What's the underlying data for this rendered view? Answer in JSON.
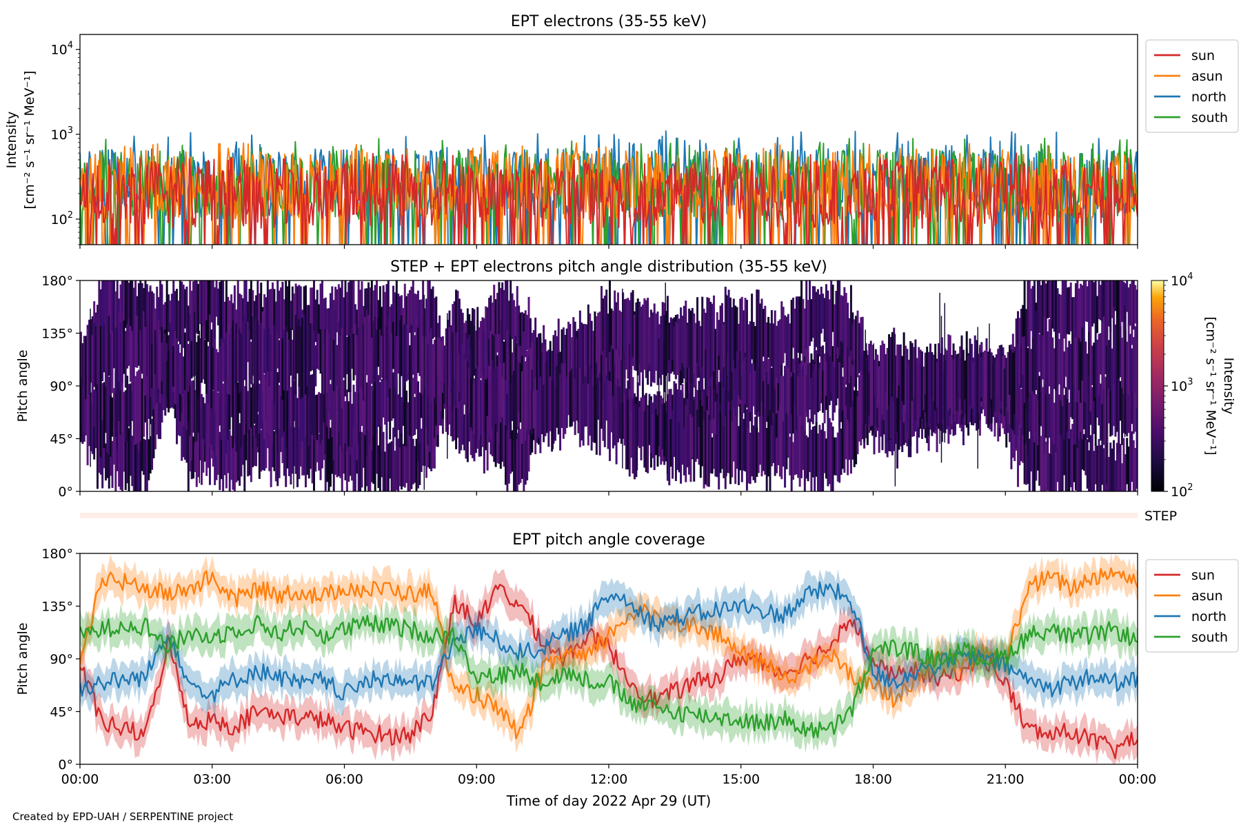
{
  "footer": "Created by EPD-UAH / SERPENTINE project",
  "colors": {
    "sun": "#d62728",
    "asun": "#ff7f0e",
    "north": "#1f77b4",
    "south": "#2ca02c",
    "step_band": "#fdeee8"
  },
  "shared_x": {
    "label": "Time of day 2022 Apr 29 (UT)",
    "range_hours": [
      0,
      24
    ],
    "ticks_hours": [
      0,
      3,
      6,
      9,
      12,
      15,
      18,
      21,
      24
    ],
    "tick_labels": [
      "00:00",
      "03:00",
      "06:00",
      "09:00",
      "12:00",
      "15:00",
      "18:00",
      "21:00",
      "00:00"
    ]
  },
  "chart_data": [
    {
      "type": "line",
      "title": "EPT electrons (35-55 keV)",
      "ylabel_line1": "Intensity",
      "ylabel_line2": "[cm⁻² s⁻¹ sr⁻¹ MeV⁻¹]",
      "yscale": "log",
      "ylim": [
        50,
        15000
      ],
      "yticks": [
        {
          "base": "10",
          "exp": "2"
        },
        {
          "base": "10",
          "exp": "3"
        },
        {
          "base": "10",
          "exp": "4"
        }
      ],
      "legend_placement": "outside-right",
      "series": [
        {
          "name": "sun",
          "color": "#d62728",
          "mean_level": 200,
          "spikes_to": 600
        },
        {
          "name": "asun",
          "color": "#ff7f0e",
          "mean_level": 250,
          "spikes_to": 800
        },
        {
          "name": "north",
          "color": "#1f77b4",
          "mean_level": 260,
          "spikes_to": 1100
        },
        {
          "name": "south",
          "color": "#2ca02c",
          "mean_level": 250,
          "spikes_to": 900
        }
      ]
    },
    {
      "type": "heatmap",
      "title": "STEP + EPT electrons pitch angle distribution (35-55 keV)",
      "ylabel": "Pitch angle",
      "ylim": [
        0,
        180
      ],
      "yticks": [
        "0°",
        "45°",
        "90°",
        "135°",
        "180°"
      ],
      "colorbar": {
        "label_line1": "Intensity",
        "label_line2": "[cm⁻² s⁻¹ sr⁻¹ MeV⁻¹]",
        "scale": "log",
        "range": [
          100,
          10000
        ],
        "ticks": [
          {
            "base": "10",
            "exp": "2"
          },
          {
            "base": "10",
            "exp": "3"
          },
          {
            "base": "10",
            "exp": "4"
          }
        ],
        "colormap": "inferno"
      },
      "step_label": "STEP"
    },
    {
      "type": "line",
      "title": "EPT pitch angle coverage",
      "ylabel": "Pitch angle",
      "ylim": [
        0,
        180
      ],
      "yticks": [
        "0°",
        "45°",
        "90°",
        "135°",
        "180°"
      ],
      "legend_placement": "outside-right",
      "series": [
        {
          "name": "sun",
          "color": "#d62728",
          "x": [
            0,
            0.5,
            1,
            1.5,
            2,
            2.5,
            3,
            3.5,
            4,
            4.5,
            5,
            5.5,
            6,
            6.5,
            7,
            7.5,
            8,
            8.5,
            9,
            9.5,
            10,
            10.5,
            11,
            11.5,
            12,
            12.5,
            13,
            13.5,
            14,
            14.5,
            15,
            15.5,
            16,
            16.5,
            17,
            17.5,
            18,
            18.5,
            19,
            19.5,
            20,
            20.5,
            21,
            21.5,
            22,
            22.5,
            23,
            23.5,
            24
          ],
          "y": [
            85,
            35,
            30,
            25,
            105,
            35,
            38,
            32,
            45,
            42,
            40,
            38,
            30,
            28,
            24,
            26,
            45,
            140,
            120,
            150,
            135,
            105,
            90,
            110,
            100,
            70,
            55,
            62,
            70,
            75,
            92,
            88,
            78,
            90,
            100,
            128,
            85,
            75,
            80,
            72,
            80,
            92,
            70,
            30,
            25,
            28,
            20,
            12,
            25
          ]
        },
        {
          "name": "asun",
          "color": "#ff7f0e",
          "x": [
            0,
            0.5,
            1,
            1.5,
            2,
            2.5,
            3,
            3.5,
            4,
            4.5,
            5,
            5.5,
            6,
            6.5,
            7,
            7.5,
            8,
            8.5,
            9,
            9.5,
            10,
            10.5,
            11,
            11.5,
            12,
            12.5,
            13,
            13.5,
            14,
            14.5,
            15,
            15.5,
            16,
            16.5,
            17,
            17.5,
            18,
            18.5,
            19,
            19.5,
            20,
            20.5,
            21,
            21.5,
            22,
            22.5,
            23,
            23.5,
            24
          ],
          "y": [
            80,
            160,
            155,
            150,
            145,
            150,
            160,
            140,
            150,
            145,
            148,
            142,
            152,
            148,
            150,
            145,
            148,
            60,
            60,
            45,
            25,
            80,
            95,
            90,
            110,
            130,
            128,
            122,
            118,
            110,
            95,
            85,
            75,
            80,
            95,
            75,
            70,
            55,
            75,
            90,
            85,
            95,
            88,
            150,
            160,
            150,
            160,
            165,
            155
          ]
        },
        {
          "name": "north",
          "color": "#1f77b4",
          "x": [
            0,
            0.5,
            1,
            1.5,
            2,
            2.5,
            3,
            3.5,
            4,
            4.5,
            5,
            5.5,
            6,
            6.5,
            7,
            7.5,
            8,
            8.5,
            9,
            9.5,
            10,
            10.5,
            11,
            11.5,
            12,
            12.5,
            13,
            13.5,
            14,
            14.5,
            15,
            15.5,
            16,
            16.5,
            17,
            17.5,
            18,
            18.5,
            19,
            19.5,
            20,
            20.5,
            21,
            21.5,
            22,
            22.5,
            23,
            23.5,
            24
          ],
          "y": [
            65,
            70,
            72,
            75,
            115,
            68,
            60,
            72,
            80,
            75,
            68,
            72,
            60,
            70,
            75,
            68,
            70,
            105,
            115,
            105,
            95,
            100,
            110,
            120,
            145,
            140,
            120,
            125,
            128,
            132,
            135,
            130,
            128,
            145,
            150,
            140,
            78,
            70,
            80,
            85,
            92,
            90,
            85,
            72,
            65,
            70,
            75,
            70,
            72
          ]
        },
        {
          "name": "south",
          "color": "#2ca02c",
          "x": [
            0,
            0.5,
            1,
            1.5,
            2,
            2.5,
            3,
            3.5,
            4,
            4.5,
            5,
            5.5,
            6,
            6.5,
            7,
            7.5,
            8,
            8.5,
            9,
            9.5,
            10,
            10.5,
            11,
            11.5,
            12,
            12.5,
            13,
            13.5,
            14,
            14.5,
            15,
            15.5,
            16,
            16.5,
            17,
            17.5,
            18,
            18.5,
            19,
            19.5,
            20,
            20.5,
            21,
            21.5,
            22,
            22.5,
            23,
            23.5,
            24
          ],
          "y": [
            110,
            115,
            120,
            118,
            100,
            112,
            108,
            115,
            120,
            112,
            118,
            110,
            115,
            120,
            118,
            115,
            110,
            110,
            75,
            75,
            80,
            70,
            78,
            72,
            70,
            52,
            48,
            45,
            42,
            40,
            38,
            35,
            38,
            30,
            28,
            45,
            95,
            100,
            95,
            88,
            98,
            90,
            92,
            110,
            115,
            108,
            110,
            115,
            105
          ]
        }
      ]
    }
  ]
}
